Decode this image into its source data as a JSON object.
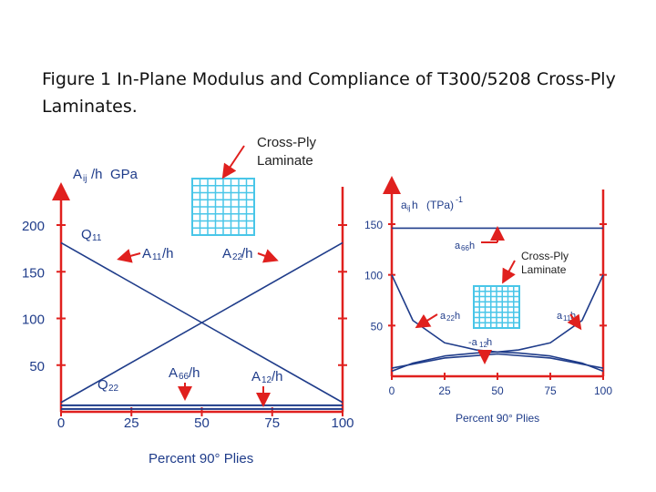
{
  "caption": "Figure 1 In-Plane Modulus and Compliance of T300/5208 Cross-Ply Laminates.",
  "colors": {
    "axis_red": "#e0201e",
    "curve_blue": "#1f3c8a",
    "grid_cyan": "#49c6e8",
    "text_dark": "#1f3c8a"
  },
  "chart_data": [
    {
      "type": "line",
      "title": "",
      "ylabel": "Aij/h",
      "yunit": "GPa",
      "xlabel": "Percent 90° Plies",
      "xlim": [
        0,
        100
      ],
      "ylim": [
        0,
        230
      ],
      "xticks": [
        "0",
        "25",
        "50",
        "75",
        "100"
      ],
      "yticks": [
        "50",
        "100",
        "150",
        "200"
      ],
      "inset_label": "Cross-Ply Laminate",
      "series": [
        {
          "name": "A11/h",
          "x": [
            0,
            100
          ],
          "y": [
            181,
            10
          ]
        },
        {
          "name": "A22/h",
          "x": [
            0,
            100
          ],
          "y": [
            10,
            181
          ]
        },
        {
          "name": "A66/h",
          "x": [
            0,
            100
          ],
          "y": [
            7,
            7
          ]
        },
        {
          "name": "A12/h",
          "x": [
            0,
            100
          ],
          "y": [
            3,
            3
          ]
        }
      ],
      "annotations": [
        "Q11",
        "A11/h",
        "A22/h",
        "Q22",
        "A66/h",
        "A12/h"
      ]
    },
    {
      "type": "line",
      "title": "",
      "ylabel": "aij·h",
      "yunit": "(TPa)-1",
      "xlabel": "Percent 90° Plies",
      "xlim": [
        0,
        100
      ],
      "ylim": [
        0,
        175
      ],
      "xticks": [
        "0",
        "25",
        "50",
        "75",
        "100"
      ],
      "yticks": [
        "50",
        "100",
        "150"
      ],
      "inset_label": "Cross-Ply Laminate",
      "series": [
        {
          "name": "a66h",
          "x": [
            0,
            100
          ],
          "y": [
            146,
            146
          ]
        },
        {
          "name": "a22h",
          "x": [
            0,
            10,
            25,
            40,
            50,
            60,
            75,
            90,
            100
          ],
          "y": [
            100,
            55,
            33,
            26,
            24,
            23,
            20,
            13,
            5
          ]
        },
        {
          "name": "a11h",
          "x": [
            0,
            10,
            25,
            40,
            50,
            60,
            75,
            90,
            100
          ],
          "y": [
            5,
            13,
            20,
            23,
            24,
            26,
            33,
            55,
            100
          ]
        },
        {
          "name": "-a12h",
          "x": [
            0,
            25,
            50,
            75,
            100
          ],
          "y": [
            8,
            18,
            22,
            18,
            8
          ]
        }
      ],
      "annotations": [
        "a66h",
        "a22h",
        "a11h",
        "-a12h"
      ]
    }
  ]
}
